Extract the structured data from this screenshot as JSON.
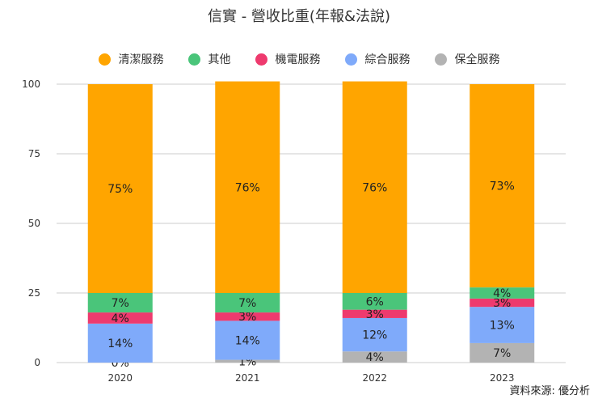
{
  "chart_data": {
    "type": "bar",
    "stacked": true,
    "title": "信實 - 營收比重(年報&法說)",
    "categories": [
      "2020",
      "2021",
      "2022",
      "2023"
    ],
    "y_ticks": [
      "0",
      "25",
      "50",
      "75",
      "100"
    ],
    "ylim": [
      0,
      100
    ],
    "series": [
      {
        "name": "保全服務",
        "color": "#b3b3b3",
        "values": [
          0,
          1,
          4,
          7
        ],
        "labels": [
          "0%",
          "1%",
          "4%",
          "7%"
        ]
      },
      {
        "name": "綜合服務",
        "color": "#7faafa",
        "values": [
          14,
          14,
          12,
          13
        ],
        "labels": [
          "14%",
          "14%",
          "12%",
          "13%"
        ]
      },
      {
        "name": "機電服務",
        "color": "#ee3a6e",
        "values": [
          4,
          3,
          3,
          3
        ],
        "labels": [
          "4%",
          "3%",
          "3%",
          "3%"
        ]
      },
      {
        "name": "其他",
        "color": "#4ac57a",
        "values": [
          7,
          7,
          6,
          4
        ],
        "labels": [
          "7%",
          "7%",
          "6%",
          "4%"
        ]
      },
      {
        "name": "清潔服務",
        "color": "#ffa500",
        "values": [
          75,
          76,
          76,
          73
        ],
        "labels": [
          "75%",
          "76%",
          "76%",
          "73%"
        ]
      }
    ],
    "legend_order": [
      "清潔服務",
      "其他",
      "機電服務",
      "綜合服務",
      "保全服務"
    ],
    "source": "資料來源: 優分析"
  }
}
